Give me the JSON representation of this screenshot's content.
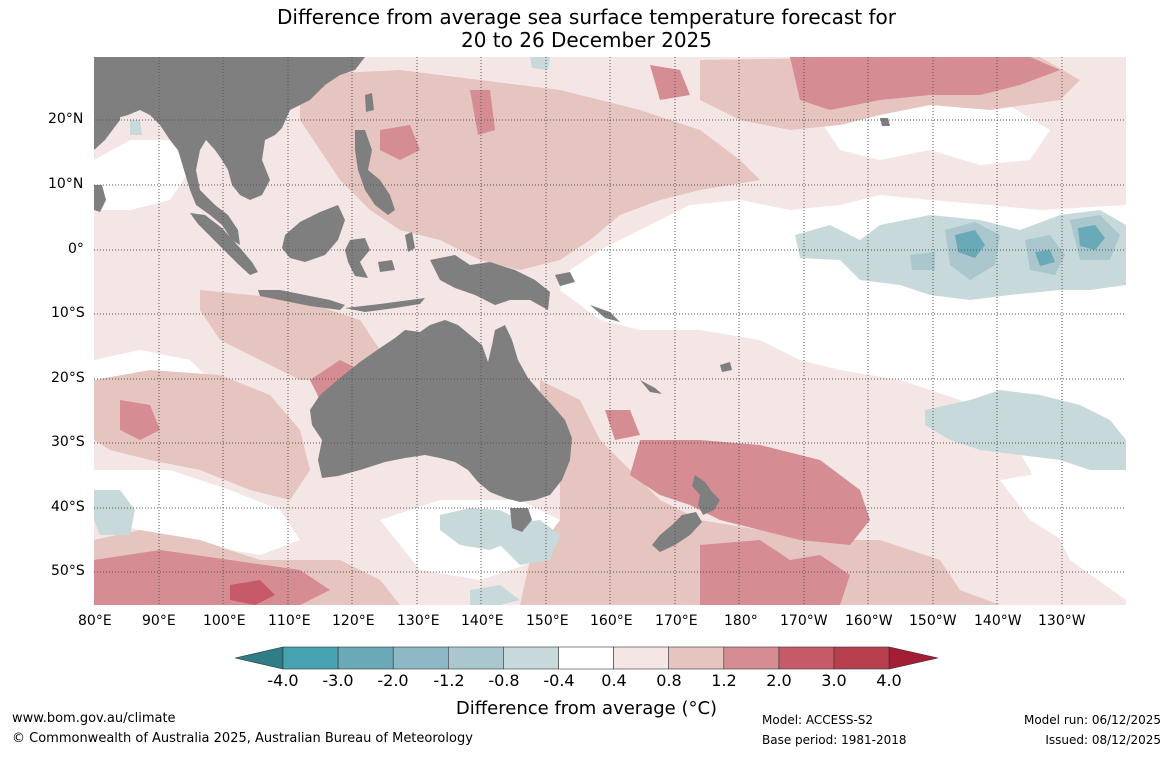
{
  "title": {
    "line1": "Difference from average sea surface temperature forecast for",
    "line2": "20 to 26 December 2025"
  },
  "axes": {
    "lat_labels": [
      "20°N",
      "10°N",
      "0°",
      "10°S",
      "20°S",
      "30°S",
      "40°S",
      "50°S"
    ],
    "lat_values": [
      20,
      10,
      0,
      -10,
      -20,
      -30,
      -40,
      -50
    ],
    "lon_labels": [
      "80°E",
      "90°E",
      "100°E",
      "110°E",
      "120°E",
      "130°E",
      "140°E",
      "150°E",
      "160°E",
      "170°E",
      "180°",
      "170°W",
      "160°W",
      "150°W",
      "140°W",
      "130°W"
    ],
    "lon_values": [
      80,
      90,
      100,
      110,
      120,
      130,
      140,
      150,
      160,
      170,
      180,
      190,
      200,
      210,
      220,
      230
    ],
    "lon_range": [
      80,
      240
    ],
    "lat_range": [
      -55,
      30
    ]
  },
  "colorbar": {
    "labels": [
      "-4.0",
      "-3.0",
      "-2.0",
      "-1.2",
      "-0.8",
      "-0.4",
      "0.4",
      "0.8",
      "1.2",
      "2.0",
      "3.0",
      "4.0"
    ],
    "colors": [
      "#2f7d87",
      "#47a3b2",
      "#6aa9b7",
      "#8cb9c4",
      "#a9c7cd",
      "#c8d9dc",
      "#ffffff",
      "#f4e6e4",
      "#e6c4c0",
      "#d58c92",
      "#c65a68",
      "#b8404e",
      "#a51d35"
    ],
    "title": "Difference from average (°C)"
  },
  "colors": {
    "land": "#7f7f7f",
    "ocean_neutral": "#ffffff",
    "warm_light": "#f4e6e4",
    "warm_mid": "#e6c4c0",
    "warm_strong": "#d58c92",
    "warm_stronger": "#c65a68",
    "cool_light": "#c8d9dc",
    "cool_mid": "#a9c7cd",
    "cool_strong": "#6aa9b7"
  },
  "footer": {
    "website": "www.bom.gov.au/climate",
    "copyright": "© Commonwealth of Australia 2025, Australian Bureau of Meteorology",
    "model": "Model: ACCESS-S2",
    "base_period": "Base period: 1981-2018",
    "model_run": "Model run: 06/12/2025",
    "issued": "Issued: 08/12/2025"
  }
}
